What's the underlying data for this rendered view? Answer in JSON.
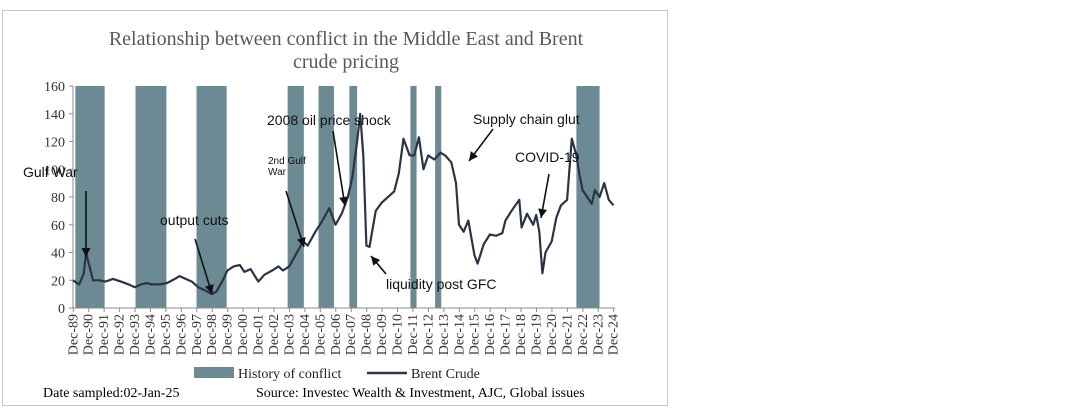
{
  "chart_data": {
    "type": "line",
    "title": "Relationship between conflict in the Middle East and Brent crude pricing",
    "title_lines": [
      "Relationship between conflict in the Middle East and Brent",
      "crude pricing"
    ],
    "ylim": [
      0,
      160
    ],
    "yticks": [
      0,
      20,
      40,
      60,
      80,
      100,
      120,
      140,
      160
    ],
    "xlim": [
      1989.9,
      2025.0
    ],
    "xticks": [
      "Dec-89",
      "Dec-90",
      "Dec-91",
      "Dec-92",
      "Dec-93",
      "Dec-94",
      "Dec-95",
      "Dec-96",
      "Dec-97",
      "Dec-98",
      "Dec-99",
      "Dec-00",
      "Dec-01",
      "Dec-02",
      "Dec-03",
      "Dec-04",
      "Dec-05",
      "Dec-06",
      "Dec-07",
      "Dec-08",
      "Dec-09",
      "Dec-10",
      "Dec-11",
      "Dec-12",
      "Dec-13",
      "Dec-14",
      "Dec-15",
      "Dec-16",
      "Dec-17",
      "Dec-18",
      "Dec-19",
      "Dec-20",
      "Dec-21",
      "Dec-22",
      "Dec-23",
      "Dec-24"
    ],
    "grid": false,
    "legend_position": "bottom",
    "series": [
      {
        "name": "Brent Crude",
        "color": "#2b3446",
        "x": [
          1989.9,
          1990.3,
          1990.6,
          1990.75,
          1990.9,
          1991.2,
          1991.6,
          1992.0,
          1992.5,
          1993.0,
          1993.5,
          1993.9,
          1994.3,
          1994.7,
          1995.0,
          1995.5,
          1996.0,
          1996.5,
          1996.8,
          1997.2,
          1997.6,
          1998.0,
          1998.4,
          1998.9,
          1999.2,
          1999.6,
          1999.9,
          2000.3,
          2000.7,
          2001.0,
          2001.4,
          2001.9,
          2002.3,
          2002.8,
          2003.2,
          2003.5,
          2003.9,
          2004.3,
          2004.8,
          2005.1,
          2005.6,
          2006.0,
          2006.5,
          2006.9,
          2007.3,
          2007.7,
          2008.0,
          2008.3,
          2008.5,
          2008.7,
          2008.9,
          2009.1,
          2009.5,
          2009.9,
          2010.3,
          2010.7,
          2011.0,
          2011.3,
          2011.7,
          2012.0,
          2012.3,
          2012.6,
          2012.9,
          2013.3,
          2013.7,
          2014.0,
          2014.4,
          2014.7,
          2014.9,
          2015.2,
          2015.5,
          2015.9,
          2016.1,
          2016.5,
          2016.9,
          2017.3,
          2017.7,
          2017.9,
          2018.3,
          2018.8,
          2018.95,
          2019.3,
          2019.7,
          2019.9,
          2020.1,
          2020.3,
          2020.5,
          2020.9,
          2021.2,
          2021.5,
          2021.9,
          2022.2,
          2022.5,
          2022.7,
          2022.9,
          2023.2,
          2023.5,
          2023.7,
          2024.0,
          2024.3,
          2024.6,
          2024.9
        ],
        "values": [
          20,
          17,
          25,
          40,
          33,
          20,
          20,
          19,
          21,
          19,
          17,
          15,
          17,
          18,
          17,
          17,
          18,
          21,
          23,
          21,
          19,
          15,
          13,
          10,
          12,
          20,
          27,
          30,
          31,
          26,
          28,
          19,
          24,
          27,
          30,
          27,
          30,
          38,
          48,
          45,
          55,
          62,
          72,
          60,
          68,
          80,
          95,
          120,
          140,
          110,
          45,
          44,
          70,
          76,
          80,
          84,
          97,
          122,
          110,
          110,
          123,
          100,
          110,
          107,
          112,
          110,
          105,
          90,
          60,
          55,
          63,
          38,
          32,
          46,
          53,
          52,
          54,
          63,
          70,
          78,
          58,
          68,
          60,
          67,
          55,
          25,
          40,
          48,
          65,
          74,
          78,
          122,
          110,
          96,
          85,
          80,
          75,
          85,
          80,
          90,
          78,
          74
        ]
      }
    ],
    "conflict_periods": [
      {
        "start": 1990.05,
        "end": 1991.95
      },
      {
        "start": 1993.95,
        "end": 1995.95
      },
      {
        "start": 1997.9,
        "end": 1999.85
      },
      {
        "start": 2003.8,
        "end": 2004.85
      },
      {
        "start": 2005.8,
        "end": 2006.8
      },
      {
        "start": 2007.8,
        "end": 2008.3
      },
      {
        "start": 2011.75,
        "end": 2012.15
      },
      {
        "start": 2013.35,
        "end": 2013.75
      },
      {
        "start": 2022.5,
        "end": 2024.0
      }
    ],
    "legend": {
      "conflict": "History of conflict",
      "line": "Brent Crude"
    },
    "colors": {
      "conflict": "#6c8a94",
      "line": "#2b3446",
      "axis": "#8c8c8c"
    },
    "annotations": [
      {
        "lines": [
          "Gulf War"
        ],
        "size": "lg"
      },
      {
        "lines": [
          "output cuts"
        ],
        "size": "lg"
      },
      {
        "lines": [
          "2nd Gulf",
          "War"
        ],
        "size": "sm"
      },
      {
        "lines": [
          "2008 oil price shock"
        ],
        "size": "lg"
      },
      {
        "lines": [
          "liquidity post GFC"
        ],
        "size": "lg"
      },
      {
        "lines": [
          "Supply chain glut"
        ],
        "size": "lg"
      },
      {
        "lines": [
          "COVID-19"
        ],
        "size": "lg"
      }
    ],
    "footer": {
      "date": "Date sampled:02-Jan-25",
      "source": "Source: Investec Wealth & Investment, AJC, Global issues"
    }
  }
}
